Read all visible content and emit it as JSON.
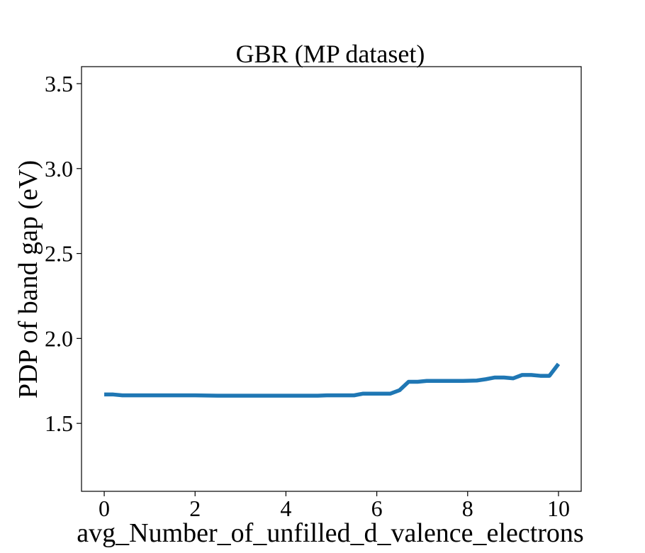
{
  "chart_data": {
    "type": "line",
    "title": "GBR (MP dataset)",
    "xlabel": "avg_Number_of_unfilled_d_valence_electrons",
    "ylabel": "PDP of band gap (eV)",
    "xlim": [
      -0.5,
      10.5
    ],
    "ylim": [
      1.1,
      3.6
    ],
    "xticks": [
      0,
      2,
      4,
      6,
      8,
      10
    ],
    "xtick_labels": [
      "0",
      "2",
      "4",
      "6",
      "8",
      "10"
    ],
    "yticks": [
      1.5,
      2.0,
      2.5,
      3.0,
      3.5
    ],
    "ytick_labels": [
      "1.5",
      "2.0",
      "2.5",
      "3.0",
      "3.5"
    ],
    "grid": false,
    "series_color": "#1f77b4",
    "series": [
      {
        "x": [
          0.0,
          0.2,
          0.4,
          0.6,
          1.0,
          1.5,
          2.0,
          2.5,
          3.0,
          3.5,
          4.0,
          4.5,
          4.7,
          4.9,
          5.2,
          5.5,
          5.7,
          5.9,
          6.3,
          6.5,
          6.7,
          6.9,
          7.1,
          7.3,
          7.6,
          7.9,
          8.2,
          8.4,
          8.6,
          8.8,
          9.0,
          9.2,
          9.4,
          9.6,
          9.8,
          10.0
        ],
        "y": [
          1.67,
          1.67,
          1.665,
          1.665,
          1.665,
          1.665,
          1.665,
          1.663,
          1.663,
          1.663,
          1.663,
          1.663,
          1.663,
          1.665,
          1.665,
          1.665,
          1.675,
          1.675,
          1.675,
          1.695,
          1.745,
          1.745,
          1.75,
          1.75,
          1.75,
          1.75,
          1.752,
          1.76,
          1.77,
          1.77,
          1.765,
          1.785,
          1.785,
          1.78,
          1.78,
          1.85
        ]
      }
    ]
  }
}
